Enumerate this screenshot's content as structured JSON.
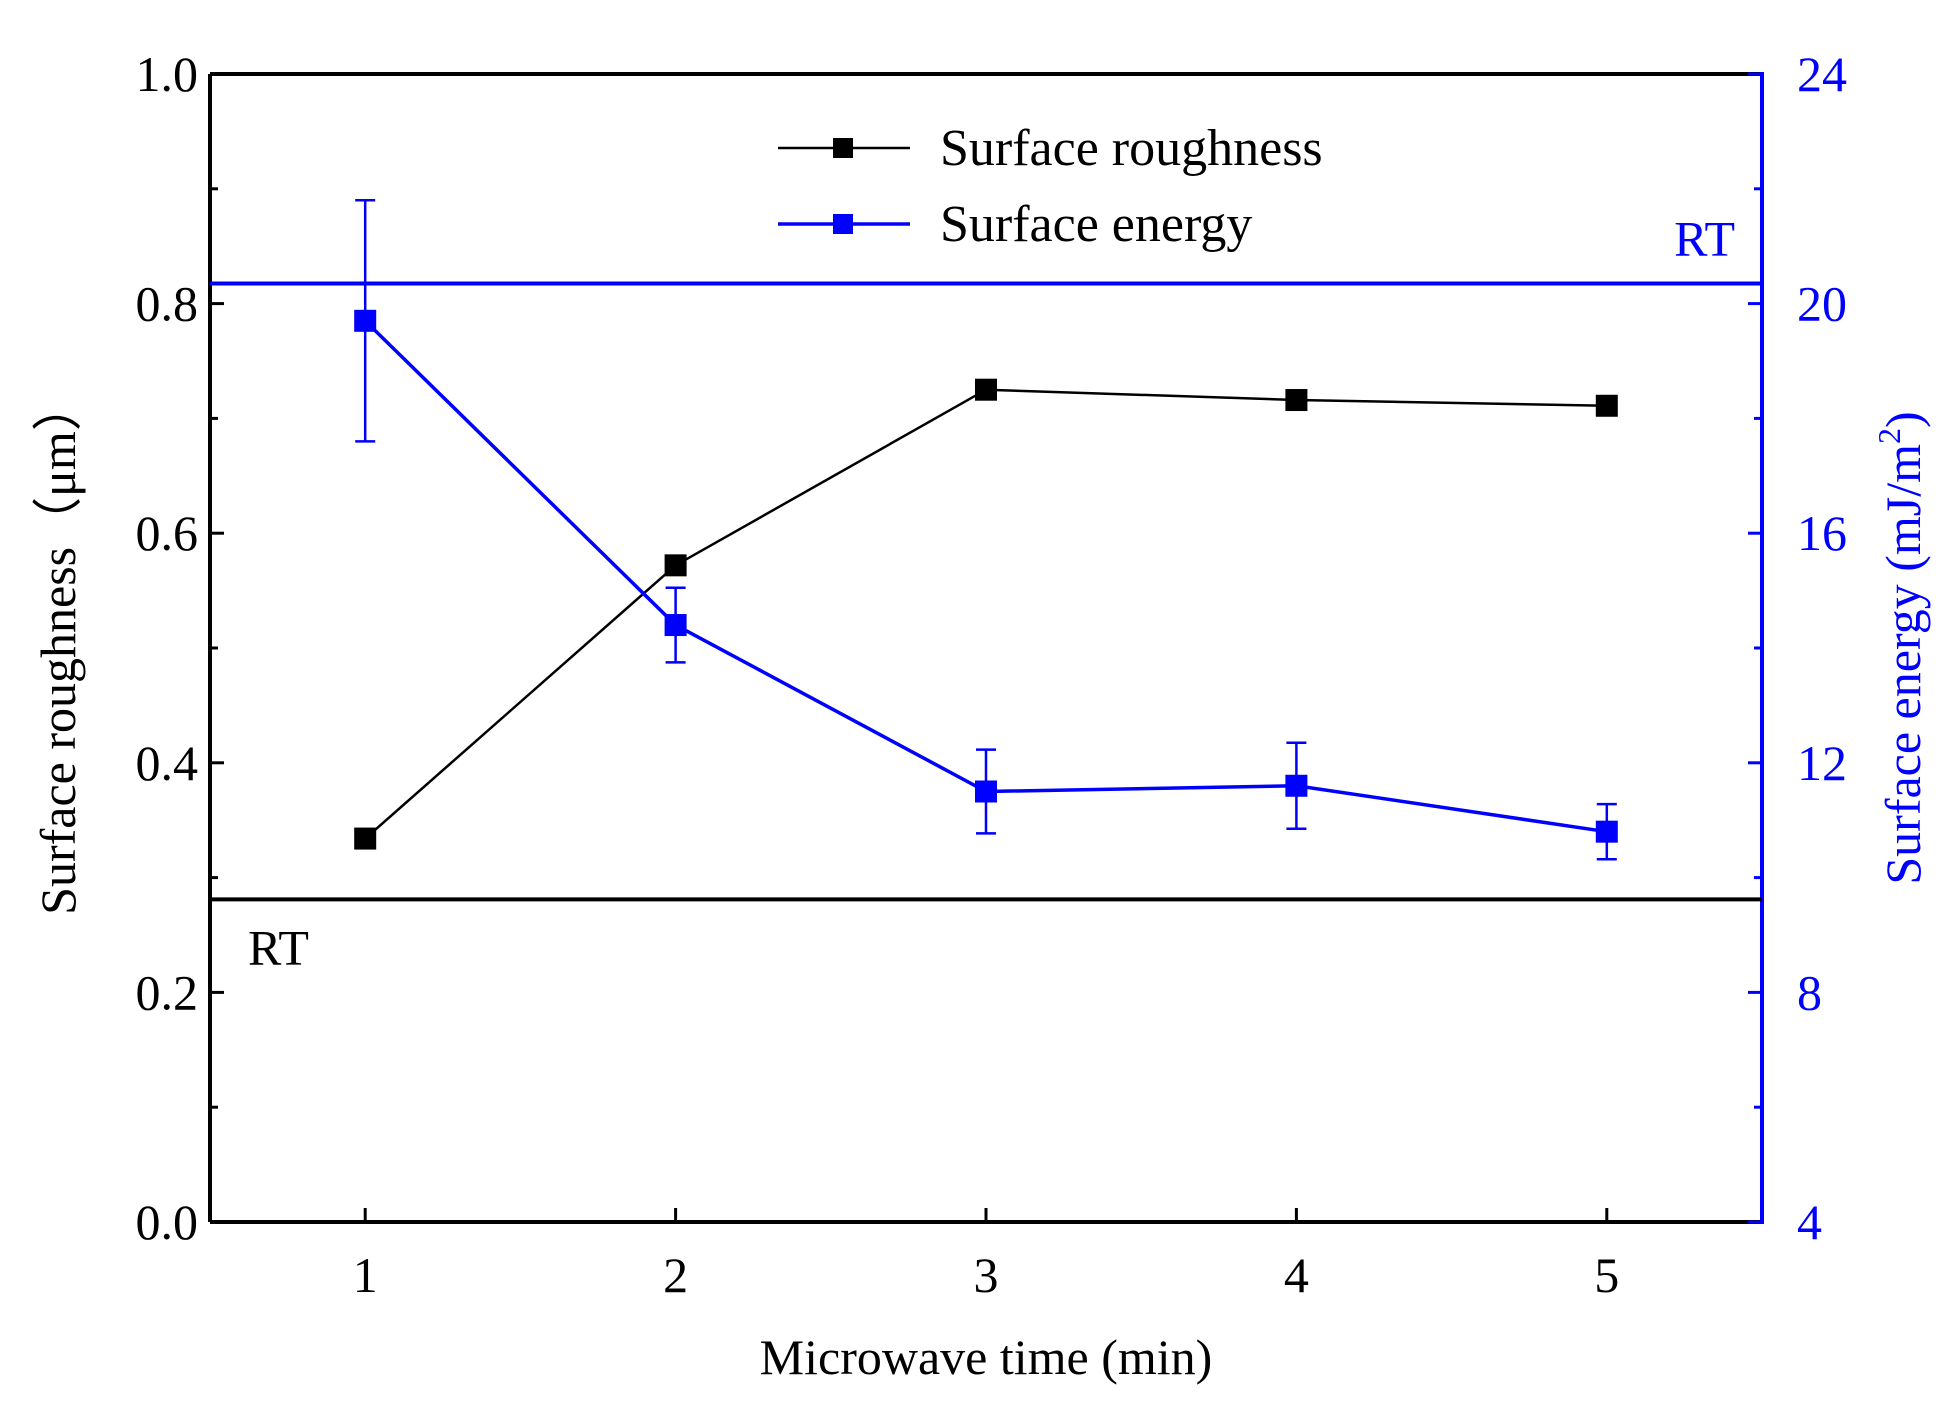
{
  "chart_data": {
    "type": "line",
    "title": "",
    "xlabel": "Microwave time (min)",
    "ylabel_left": "Surface roughness（μm）",
    "ylabel_right_prefix": "Surface energy (mJ/m",
    "ylabel_right_sup": "2",
    "ylabel_right_suffix": ")",
    "x": [
      1,
      2,
      3,
      4,
      5
    ],
    "xlim": [
      0.5,
      5.5
    ],
    "xticks": [
      "1",
      "2",
      "3",
      "4",
      "5"
    ],
    "ylim_left": [
      0.0,
      1.0
    ],
    "yticks_left": [
      "0.0",
      "0.2",
      "0.4",
      "0.6",
      "0.8",
      "1.0"
    ],
    "ylim_right": [
      4,
      24
    ],
    "yticks_right": [
      "4",
      "8",
      "12",
      "16",
      "20",
      "24"
    ],
    "series": [
      {
        "name": "Surface roughness",
        "axis": "left",
        "color": "#000000",
        "values": [
          0.334,
          0.572,
          0.725,
          0.716,
          0.711
        ],
        "errors": null
      },
      {
        "name": "Surface energy",
        "axis": "right",
        "color": "#0000ff",
        "values": [
          19.7,
          14.4,
          11.5,
          11.6,
          10.8
        ],
        "errors": [
          2.1,
          0.65,
          0.73,
          0.75,
          0.48
        ]
      }
    ],
    "reference_lines": [
      {
        "label": "RT",
        "axis": "left",
        "value": 0.281,
        "color": "#000000"
      },
      {
        "label": "RT",
        "axis": "right",
        "value": 20.35,
        "color": "#0000ff"
      }
    ],
    "legend_position": "top-center",
    "grid": false
  }
}
